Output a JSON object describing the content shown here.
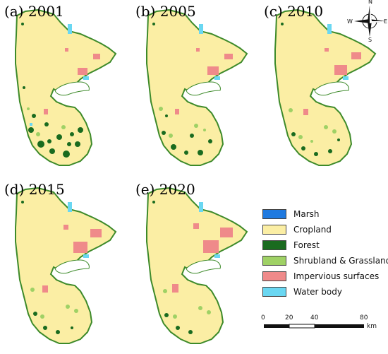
{
  "panels": [
    {
      "label": "(a) 2001"
    },
    {
      "label": "(b) 2005"
    },
    {
      "label": "(c) 2010"
    },
    {
      "label": "(d) 2015"
    },
    {
      "label": "(e) 2020"
    }
  ],
  "legend": {
    "items": [
      {
        "label": "Marsh",
        "color": "#1f7ae0"
      },
      {
        "label": "Cropland",
        "color": "#fbeea4"
      },
      {
        "label": "Forest",
        "color": "#1a6b1f"
      },
      {
        "label": "Shrubland & Grassland",
        "color": "#9fd165"
      },
      {
        "label": "Impervious surfaces",
        "color": "#ef8a8a"
      },
      {
        "label": "Water body",
        "color": "#6ad7f2"
      }
    ]
  },
  "scale": {
    "ticks": [
      "0",
      "20",
      "40",
      "80"
    ],
    "unit": "km"
  },
  "compass": {
    "n": "N",
    "s": "S",
    "e": "E",
    "w": "W"
  }
}
